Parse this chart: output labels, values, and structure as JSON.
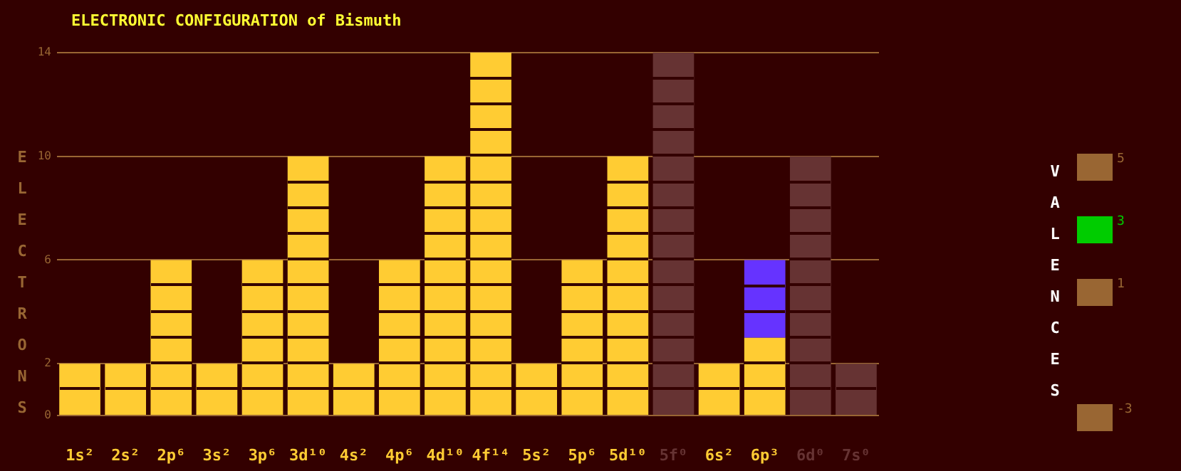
{
  "chart_data": [
    {
      "type": "bar",
      "title": "ELECTRONIC CONFIGURATION of Bismuth",
      "ylabel": "ELECTRONS",
      "categories": [
        "1s²",
        "2s²",
        "2p⁶",
        "3s²",
        "3p⁶",
        "3d¹⁰",
        "4s²",
        "4p⁶",
        "4d¹⁰",
        "4f¹⁴",
        "5s²",
        "5p⁶",
        "5d¹⁰",
        "5f⁰",
        "6s²",
        "6p³",
        "6d⁰",
        "7s⁰"
      ],
      "stacked": true,
      "series": [
        {
          "color": "#ffcc33",
          "values": [
            2,
            2,
            6,
            2,
            6,
            10,
            2,
            6,
            10,
            14,
            2,
            6,
            10,
            0,
            2,
            3,
            0,
            0
          ]
        },
        {
          "colors": [
            "#663333",
            "#663333",
            "#663333",
            "#663333",
            "#663333",
            "#663333",
            "#663333",
            "#663333",
            "#663333",
            "#663333",
            "#663333",
            "#663333",
            "#663333",
            "#663333",
            "#663333",
            "#6633ff",
            "#663333",
            "#663333"
          ],
          "values": [
            null,
            null,
            null,
            null,
            null,
            null,
            null,
            null,
            null,
            null,
            null,
            null,
            null,
            14,
            null,
            3,
            10,
            2
          ]
        }
      ],
      "ylim": [
        0,
        14
      ],
      "yticks": [
        0,
        2,
        6,
        10,
        14
      ],
      "grid": "y",
      "legend": false
    },
    {
      "type": "other",
      "title": "VALENCES",
      "values": [
        5,
        3,
        1,
        -3
      ],
      "data_labels": true,
      "colors": [
        "#996633",
        "#00cc00",
        "#996633",
        "#996633"
      ]
    }
  ]
}
